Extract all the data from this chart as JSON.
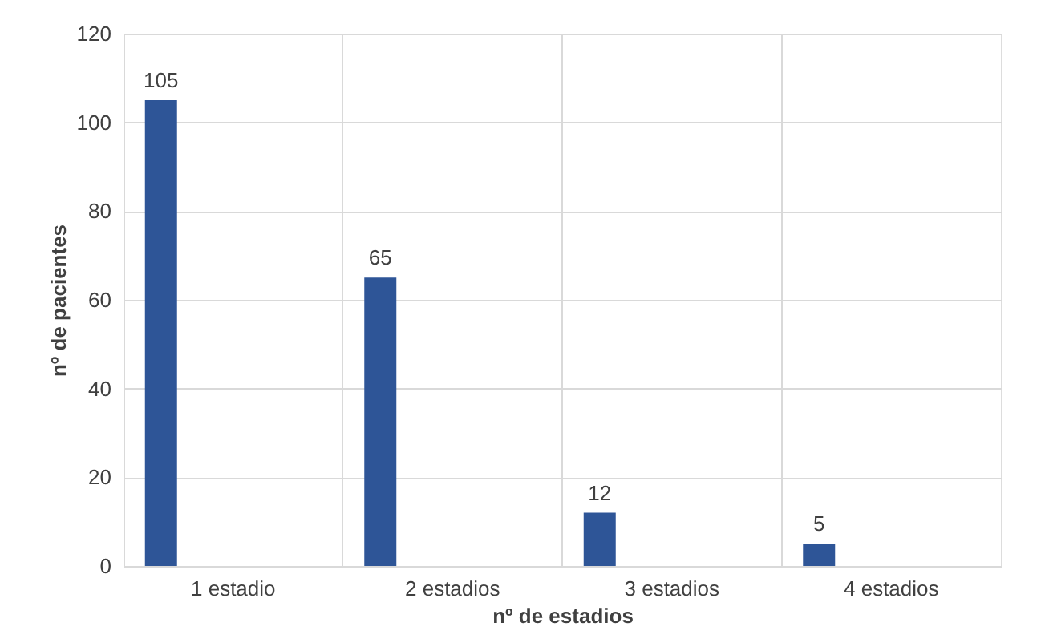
{
  "chart_data": {
    "type": "bar",
    "xlabel": "nº de estadios",
    "ylabel": "nº de pacientes",
    "categories": [
      "1 estadio",
      "2 estadios",
      "3 estadios",
      "4 estadios"
    ],
    "values": [
      105,
      65,
      12,
      5
    ],
    "color": "#2e5597",
    "ylim": [
      0,
      120
    ],
    "yticks": [
      0,
      20,
      40,
      60,
      80,
      100,
      120
    ],
    "grid": true,
    "data_labels": true
  }
}
